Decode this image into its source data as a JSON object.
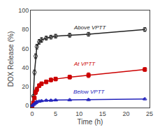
{
  "chart_data": {
    "type": "line",
    "xlabel": "Time (h)",
    "ylabel": "DOX Release (%)",
    "xlim": [
      -0.3,
      25
    ],
    "ylim": [
      -2,
      100
    ],
    "xticks": [
      0,
      5,
      10,
      15,
      20,
      25
    ],
    "yticks": [
      0,
      20,
      40,
      60,
      80,
      100
    ],
    "grid": false,
    "x": [
      0,
      0.25,
      0.5,
      0.75,
      1.0,
      1.5,
      2.0,
      3.0,
      4.0,
      5.0,
      8.0,
      12.0,
      24.0
    ],
    "series": [
      {
        "name": "Above VPTT",
        "color": "#222222",
        "marker": "circle-open",
        "line_style": "solid",
        "values": [
          0,
          10,
          35,
          52,
          62,
          67,
          69,
          71,
          72,
          73,
          74,
          75,
          80
        ],
        "yerr": [
          0,
          0,
          2.5,
          2.5,
          2.5,
          2.5,
          2.5,
          2.0,
          2.0,
          2.0,
          2.0,
          2.0,
          2.0
        ]
      },
      {
        "name": "At VPTT",
        "color": "#cc0000",
        "marker": "square",
        "line_style": "solid",
        "values": [
          0,
          3,
          8,
          14,
          17,
          21,
          23,
          25,
          27,
          28,
          30,
          32,
          38
        ],
        "yerr": [
          0,
          0.5,
          1.5,
          2.5,
          2.5,
          2.0,
          2.0,
          2.0,
          2.0,
          2.0,
          2.0,
          2.5,
          2.0
        ]
      },
      {
        "name": "Below VPTT",
        "color": "#2222bb",
        "marker": "triangle-up-open",
        "line_style": "solid",
        "values": [
          0,
          1,
          2,
          3,
          4,
          4.5,
          5,
          5.5,
          5.5,
          5.8,
          6,
          6.2,
          7
        ],
        "yerr": [
          0,
          0.5,
          0.8,
          1.0,
          1.0,
          0.8,
          0.8,
          0.8,
          0.8,
          0.8,
          0.8,
          0.8,
          0.8
        ]
      }
    ],
    "annotations": [
      {
        "text": "Above VPTT",
        "x": 8.5,
        "y": 77,
        "color": "#222222"
      },
      {
        "text": "At VPTT",
        "x": 8.5,
        "y": 39,
        "color": "#cc0000"
      },
      {
        "text": "Below VPTT",
        "x": 8.5,
        "y": 10,
        "color": "#2222bb"
      }
    ]
  }
}
